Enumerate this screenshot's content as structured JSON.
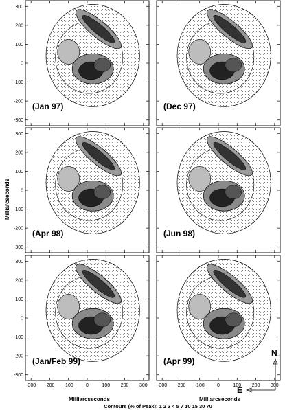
{
  "figure": {
    "ylabel": "Milliarcseconds",
    "xlabel": "Milliarcseconds",
    "contour_caption": "Contours (% of Peak): 1  2  3  4  5  7  10 15 30 70",
    "compass": {
      "north": "N",
      "east": "E"
    }
  },
  "chart_data": {
    "type": "heatmap",
    "description_kind": "contour maps (grid of 6 panels)",
    "x_ticks": [
      -300,
      -200,
      -100,
      0,
      100,
      200,
      300
    ],
    "y_ticks": [
      -300,
      -200,
      -100,
      0,
      100,
      200,
      300
    ],
    "xlim": [
      -330,
      330
    ],
    "ylim": [
      -330,
      330
    ],
    "contour_levels": [
      1,
      2,
      3,
      4,
      5,
      7,
      10,
      15,
      30,
      70
    ],
    "panels": [
      {
        "label": "(Jan 97)",
        "row": 0,
        "col": 0
      },
      {
        "label": "(Dec 97)",
        "row": 0,
        "col": 1
      },
      {
        "label": "(Apr 98)",
        "row": 1,
        "col": 0
      },
      {
        "label": "(Jun 98)",
        "row": 1,
        "col": 1
      },
      {
        "label": "(Jan/Feb 99)",
        "row": 2,
        "col": 0
      },
      {
        "label": "(Apr 99)",
        "row": 2,
        "col": 1
      }
    ]
  }
}
